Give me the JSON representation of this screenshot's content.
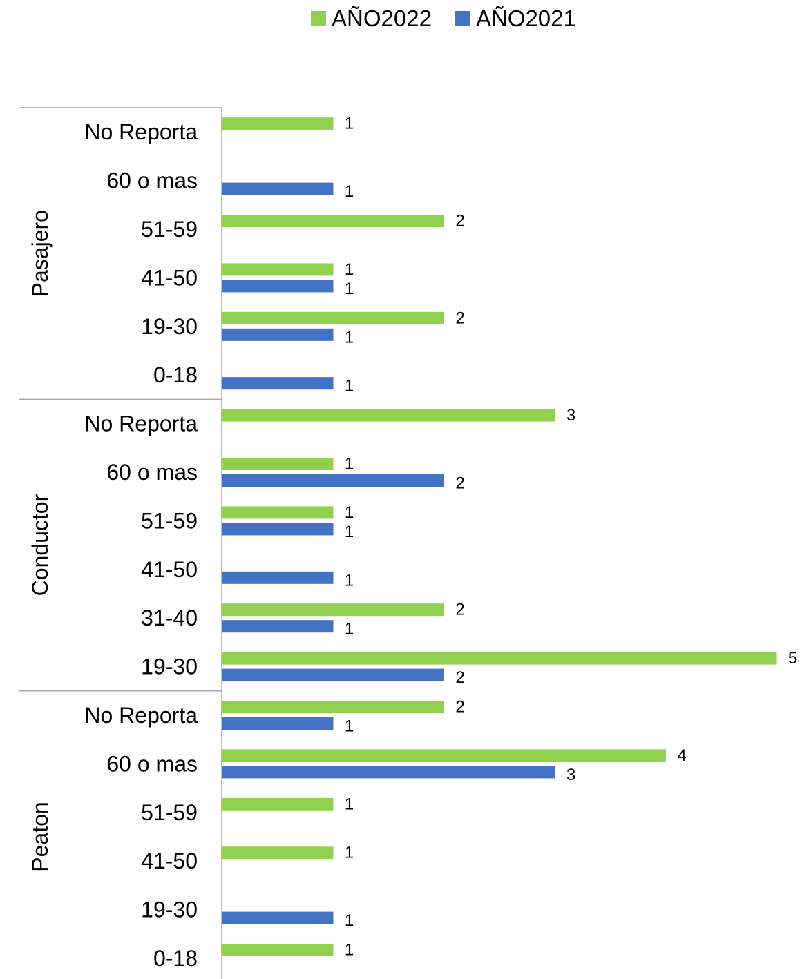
{
  "colors": {
    "y2022": "#92D050",
    "y2021": "#4472C4",
    "axis": "#A6A6A6"
  },
  "legend": [
    {
      "name": "AÑO2022",
      "color": "#92D050"
    },
    {
      "name": "AÑO2021",
      "color": "#4472C4"
    }
  ],
  "chart_data": {
    "type": "bar",
    "orientation": "horizontal",
    "legend_position": "top",
    "grid": false,
    "xlim": [
      0,
      5
    ],
    "series": [
      {
        "name": "AÑO2022",
        "color": "#92D050"
      },
      {
        "name": "AÑO2021",
        "color": "#4472C4"
      }
    ],
    "groups": [
      {
        "name": "Pasajero",
        "categories": [
          {
            "label": "No Reporta",
            "AÑO2022": 1,
            "AÑO2021": null
          },
          {
            "label": "60 o mas",
            "AÑO2022": null,
            "AÑO2021": 1
          },
          {
            "label": "51-59",
            "AÑO2022": 2,
            "AÑO2021": null
          },
          {
            "label": "41-50",
            "AÑO2022": 1,
            "AÑO2021": 1
          },
          {
            "label": "19-30",
            "AÑO2022": 2,
            "AÑO2021": 1
          },
          {
            "label": "0-18",
            "AÑO2022": null,
            "AÑO2021": 1
          }
        ]
      },
      {
        "name": "Conductor",
        "categories": [
          {
            "label": "No Reporta",
            "AÑO2022": 3,
            "AÑO2021": null
          },
          {
            "label": "60 o mas",
            "AÑO2022": 1,
            "AÑO2021": 2
          },
          {
            "label": "51-59",
            "AÑO2022": 1,
            "AÑO2021": 1
          },
          {
            "label": "41-50",
            "AÑO2022": null,
            "AÑO2021": 1
          },
          {
            "label": "31-40",
            "AÑO2022": 2,
            "AÑO2021": 1
          },
          {
            "label": "19-30",
            "AÑO2022": 5,
            "AÑO2021": 2
          }
        ]
      },
      {
        "name": "Peaton",
        "categories": [
          {
            "label": "No Reporta",
            "AÑO2022": 2,
            "AÑO2021": 1
          },
          {
            "label": "60 o mas",
            "AÑO2022": 4,
            "AÑO2021": 3
          },
          {
            "label": "51-59",
            "AÑO2022": 1,
            "AÑO2021": null
          },
          {
            "label": "41-50",
            "AÑO2022": 1,
            "AÑO2021": null
          },
          {
            "label": "19-30",
            "AÑO2022": null,
            "AÑO2021": 1
          },
          {
            "label": "0-18",
            "AÑO2022": 1,
            "AÑO2021": null
          }
        ]
      }
    ]
  }
}
